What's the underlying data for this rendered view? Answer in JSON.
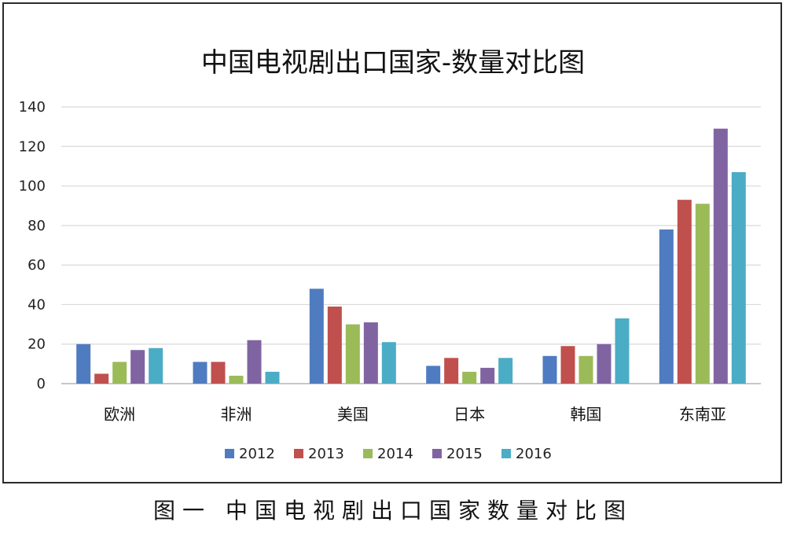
{
  "caption": "图一 中国电视剧出口国家数量对比图",
  "chart_data": {
    "type": "bar",
    "title": "中国电视剧出口国家-数量对比图",
    "xlabel": "",
    "ylabel": "",
    "categories": [
      "欧洲",
      "非洲",
      "美国",
      "日本",
      "韩国",
      "东南亚"
    ],
    "ylim": [
      0,
      140
    ],
    "yticks": [
      0,
      20,
      40,
      60,
      80,
      100,
      120,
      140
    ],
    "grid": true,
    "legend_position": "bottom",
    "series": [
      {
        "name": "2012",
        "color": "#4f7cc0",
        "values": [
          20,
          11,
          48,
          9,
          14,
          78
        ]
      },
      {
        "name": "2013",
        "color": "#c0504d",
        "values": [
          5,
          11,
          39,
          13,
          19,
          93
        ]
      },
      {
        "name": "2014",
        "color": "#9bbb59",
        "values": [
          11,
          4,
          30,
          6,
          14,
          91
        ]
      },
      {
        "name": "2015",
        "color": "#8064a2",
        "values": [
          17,
          22,
          31,
          8,
          20,
          129
        ]
      },
      {
        "name": "2016",
        "color": "#4bacc6",
        "values": [
          18,
          6,
          21,
          13,
          33,
          107
        ]
      }
    ]
  }
}
